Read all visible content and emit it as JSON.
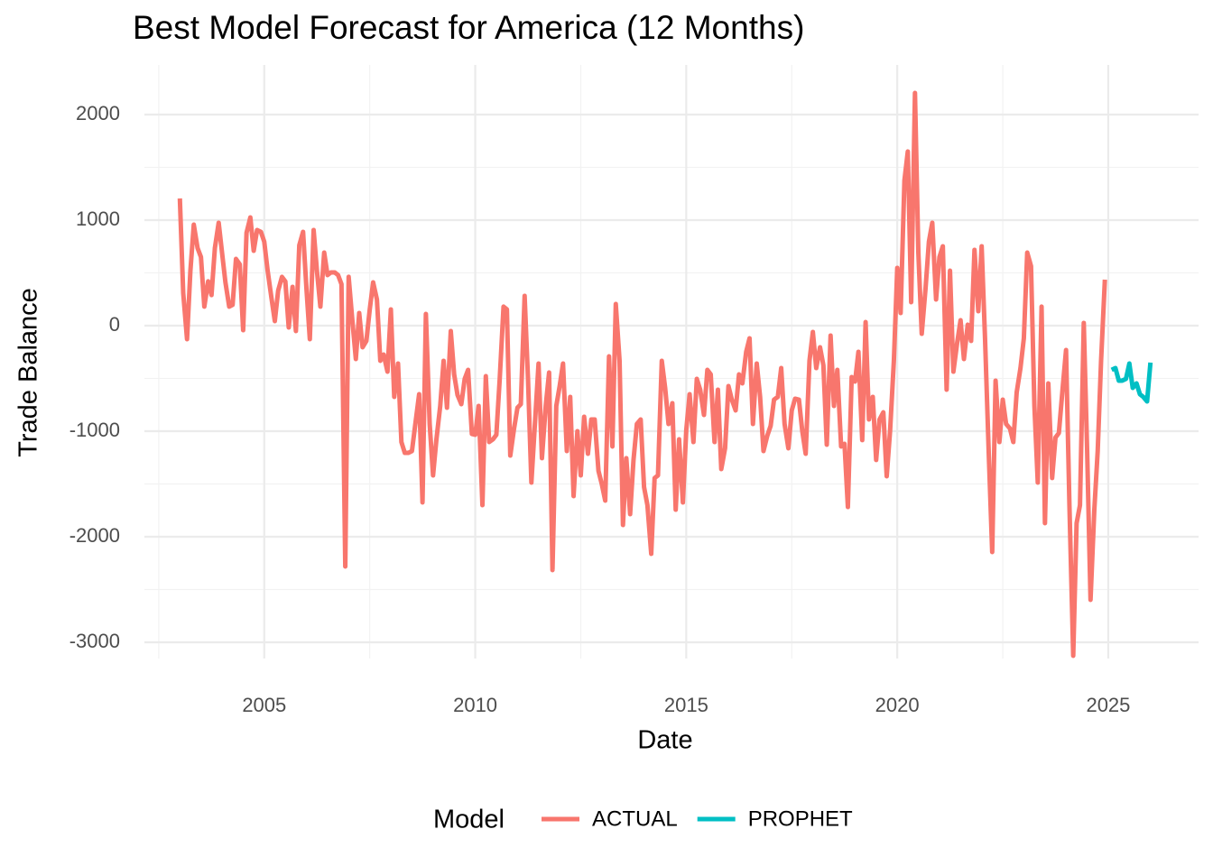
{
  "chart_data": {
    "type": "line",
    "title": "Best Model Forecast for America (12 Months)",
    "x_label": "Date",
    "y_label": "Trade Balance",
    "legend_title": "Model",
    "legend_position": "bottom",
    "grid": true,
    "xlim": [
      2002.16,
      2027.14
    ],
    "ylim": [
      -3154,
      2470
    ],
    "xticks": [
      2005,
      2010,
      2015,
      2020,
      2025
    ],
    "yticks": [
      -3000,
      -2000,
      -1000,
      0,
      1000,
      2000
    ],
    "minor_xticks": [
      2002.5,
      2007.5,
      2012.5,
      2017.5,
      2022.5
    ],
    "minor_yticks": [
      -2500,
      -1500,
      -500,
      500,
      1500
    ],
    "series": [
      {
        "name": "ACTUAL",
        "color": "#F8766D",
        "x": [
          2003.0,
          2003.08,
          2003.17,
          2003.25,
          2003.33,
          2003.42,
          2003.5,
          2003.58,
          2003.67,
          2003.75,
          2003.83,
          2003.92,
          2004.0,
          2004.08,
          2004.17,
          2004.25,
          2004.33,
          2004.42,
          2004.5,
          2004.58,
          2004.67,
          2004.75,
          2004.83,
          2004.92,
          2005.0,
          2005.08,
          2005.17,
          2005.25,
          2005.33,
          2005.42,
          2005.5,
          2005.58,
          2005.67,
          2005.75,
          2005.83,
          2005.92,
          2006.0,
          2006.08,
          2006.17,
          2006.25,
          2006.33,
          2006.42,
          2006.5,
          2006.58,
          2006.67,
          2006.75,
          2006.83,
          2006.92,
          2007.0,
          2007.08,
          2007.17,
          2007.25,
          2007.33,
          2007.42,
          2007.5,
          2007.58,
          2007.67,
          2007.75,
          2007.83,
          2007.92,
          2008.0,
          2008.08,
          2008.17,
          2008.25,
          2008.33,
          2008.42,
          2008.5,
          2008.58,
          2008.67,
          2008.75,
          2008.83,
          2008.92,
          2009.0,
          2009.08,
          2009.17,
          2009.25,
          2009.33,
          2009.42,
          2009.5,
          2009.58,
          2009.67,
          2009.75,
          2009.83,
          2009.92,
          2010.0,
          2010.08,
          2010.17,
          2010.25,
          2010.33,
          2010.42,
          2010.5,
          2010.58,
          2010.67,
          2010.75,
          2010.83,
          2010.92,
          2011.0,
          2011.08,
          2011.17,
          2011.25,
          2011.33,
          2011.42,
          2011.5,
          2011.58,
          2011.67,
          2011.75,
          2011.83,
          2011.92,
          2012.0,
          2012.08,
          2012.17,
          2012.25,
          2012.33,
          2012.42,
          2012.5,
          2012.58,
          2012.67,
          2012.75,
          2012.83,
          2012.92,
          2013.0,
          2013.08,
          2013.17,
          2013.25,
          2013.33,
          2013.42,
          2013.5,
          2013.58,
          2013.67,
          2013.75,
          2013.83,
          2013.92,
          2014.0,
          2014.08,
          2014.17,
          2014.25,
          2014.33,
          2014.42,
          2014.5,
          2014.58,
          2014.67,
          2014.75,
          2014.83,
          2014.92,
          2015.0,
          2015.08,
          2015.17,
          2015.25,
          2015.33,
          2015.42,
          2015.5,
          2015.58,
          2015.67,
          2015.75,
          2015.83,
          2015.92,
          2016.0,
          2016.08,
          2016.17,
          2016.25,
          2016.33,
          2016.42,
          2016.5,
          2016.58,
          2016.67,
          2016.75,
          2016.83,
          2016.92,
          2017.0,
          2017.08,
          2017.17,
          2017.25,
          2017.33,
          2017.42,
          2017.5,
          2017.58,
          2017.67,
          2017.75,
          2017.83,
          2017.92,
          2018.0,
          2018.08,
          2018.17,
          2018.25,
          2018.33,
          2018.42,
          2018.5,
          2018.58,
          2018.67,
          2018.75,
          2018.83,
          2018.92,
          2019.0,
          2019.08,
          2019.17,
          2019.25,
          2019.33,
          2019.42,
          2019.5,
          2019.58,
          2019.67,
          2019.75,
          2019.83,
          2019.92,
          2020.0,
          2020.08,
          2020.17,
          2020.25,
          2020.33,
          2020.42,
          2020.5,
          2020.58,
          2020.67,
          2020.75,
          2020.83,
          2020.92,
          2021.0,
          2021.08,
          2021.17,
          2021.25,
          2021.33,
          2021.42,
          2021.5,
          2021.58,
          2021.67,
          2021.75,
          2021.83,
          2021.92,
          2022.0,
          2022.08,
          2022.17,
          2022.25,
          2022.33,
          2022.42,
          2022.5,
          2022.58,
          2022.67,
          2022.75,
          2022.83,
          2022.92,
          2023.0,
          2023.08,
          2023.17,
          2023.25,
          2023.33,
          2023.42,
          2023.5,
          2023.58,
          2023.67,
          2023.75,
          2023.83,
          2023.92,
          2024.0,
          2024.08,
          2024.17,
          2024.25,
          2024.33,
          2024.42,
          2024.5,
          2024.58,
          2024.67,
          2024.75,
          2024.83,
          2024.92
        ],
        "values": [
          1205,
          308,
          -128,
          521,
          957,
          735,
          650,
          180,
          420,
          290,
          735,
          975,
          690,
          410,
          180,
          197,
          632,
          581,
          -43,
          880,
          1025,
          709,
          906,
          889,
          795,
          521,
          265,
          43,
          333,
          462,
          419,
          -17,
          367,
          -51,
          761,
          889,
          350,
          -128,
          906,
          513,
          180,
          692,
          479,
          504,
          504,
          479,
          393,
          -2282,
          462,
          85,
          -316,
          120,
          -205,
          -145,
          154,
          410,
          248,
          -333,
          -274,
          -436,
          154,
          -675,
          -359,
          -1103,
          -1205,
          -1205,
          -1188,
          -932,
          -650,
          -1675,
          111,
          -932,
          -1419,
          -1077,
          -761,
          -333,
          -778,
          -51,
          -462,
          -658,
          -744,
          -504,
          -419,
          -1026,
          -1034,
          -761,
          -1701,
          -479,
          -1103,
          -1077,
          -1034,
          -504,
          180,
          154,
          -1231,
          -974,
          -778,
          -744,
          282,
          -504,
          -1487,
          -889,
          -359,
          -1256,
          -761,
          -444,
          -2316,
          -761,
          -573,
          -359,
          -1188,
          -675,
          -1615,
          -1000,
          -1419,
          -863,
          -1214,
          -889,
          -889,
          -1376,
          -1504,
          -1658,
          -291,
          -1145,
          205,
          -333,
          -1889,
          -1256,
          -1786,
          -1273,
          -932,
          -889,
          -1530,
          -1701,
          -2162,
          -1444,
          -1419,
          -333,
          -590,
          -932,
          -735,
          -1744,
          -1077,
          -1675,
          -991,
          -650,
          -1103,
          -504,
          -607,
          -846,
          -419,
          -462,
          -1103,
          -607,
          -1359,
          -1162,
          -573,
          -701,
          -803,
          -462,
          -547,
          -248,
          -120,
          -932,
          -359,
          -675,
          -1188,
          -1043,
          -949,
          -701,
          -675,
          -402,
          -932,
          -1162,
          -803,
          -692,
          -701,
          -1000,
          -1214,
          -333,
          -60,
          -402,
          -205,
          -376,
          -1128,
          -94,
          -761,
          -419,
          -1145,
          -1120,
          -1718,
          -487,
          -530,
          -248,
          -1085,
          34,
          -889,
          -675,
          -1273,
          -889,
          -821,
          -1427,
          -1000,
          -333,
          547,
          120,
          1376,
          1650,
          222,
          2205,
          692,
          -77,
          350,
          795,
          975,
          248,
          650,
          752,
          -607,
          521,
          -436,
          -162,
          51,
          -316,
          9,
          -145,
          718,
          137,
          752,
          -120,
          -1231,
          -2145,
          -521,
          -1103,
          -701,
          -932,
          -974,
          -1103,
          -632,
          -402,
          -120,
          692,
          564,
          -761,
          -1487,
          180,
          -1872,
          -547,
          -1444,
          -1060,
          -1017,
          -590,
          -231,
          -1701,
          -3128,
          -1872,
          -1701,
          26,
          -1188,
          -2598,
          -1744,
          -1188,
          -333,
          436
        ]
      },
      {
        "name": "PROPHET",
        "color": "#00BFC4",
        "x": [
          2025.08,
          2025.17,
          2025.25,
          2025.33,
          2025.42,
          2025.5,
          2025.58,
          2025.67,
          2025.75,
          2025.83,
          2025.92,
          2026.0
        ],
        "values": [
          -419,
          -402,
          -521,
          -521,
          -504,
          -359,
          -590,
          -547,
          -650,
          -675,
          -718,
          -350
        ]
      }
    ]
  }
}
